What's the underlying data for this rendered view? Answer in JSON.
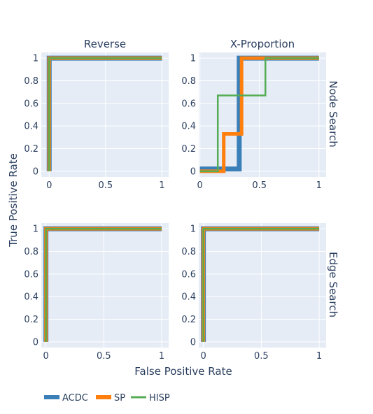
{
  "figure": {
    "xlabel": "False Positive Rate",
    "ylabel": "True Positive Rate",
    "row_labels": [
      "Node Search",
      "Edge Search"
    ],
    "col_labels": [
      "Reverse",
      "X-Proportion"
    ]
  },
  "legend": [
    {
      "name": "ACDC",
      "color": "#3b7fb8"
    },
    {
      "name": "SP",
      "color": "#ff7f0e"
    },
    {
      "name": "HISP",
      "color": "#54ad54"
    }
  ],
  "chart_data": [
    {
      "type": "line",
      "title": "Reverse",
      "row": "Node Search",
      "xlim": [
        -0.07,
        1.06
      ],
      "ylim": [
        -0.05,
        1.05
      ],
      "xticks": [
        "0",
        "0.5",
        "1"
      ],
      "yticks": [
        "0",
        "0.2",
        "0.4",
        "0.6",
        "0.8",
        "1"
      ],
      "grid": true,
      "series": [
        {
          "name": "ACDC",
          "color": "#3b7fb8",
          "width": 7,
          "x": [
            0,
            0,
            1
          ],
          "y": [
            0,
            1,
            1
          ]
        },
        {
          "name": "SP",
          "color": "#ff7f0e",
          "width": 5,
          "x": [
            0,
            0,
            1
          ],
          "y": [
            0,
            1,
            1
          ]
        },
        {
          "name": "HISP",
          "color": "#54ad54",
          "width": 2.5,
          "x": [
            0,
            0,
            1
          ],
          "y": [
            0,
            1,
            1
          ]
        }
      ]
    },
    {
      "type": "line",
      "title": "X-Proportion",
      "row": "Node Search",
      "xlim": [
        -0.01,
        1.06
      ],
      "ylim": [
        -0.05,
        1.05
      ],
      "xticks": [
        "0",
        "0.5",
        "1"
      ],
      "yticks": [
        "0",
        "0.2",
        "0.4",
        "0.6",
        "0.8",
        "1"
      ],
      "grid": true,
      "series": [
        {
          "name": "ACDC",
          "color": "#3b7fb8",
          "width": 7,
          "x": [
            0,
            0.25,
            0.25,
            0.33,
            0.33,
            1
          ],
          "y": [
            0.02,
            0.02,
            0.02,
            0.02,
            1,
            1
          ]
        },
        {
          "name": "SP",
          "color": "#ff7f0e",
          "width": 5,
          "x": [
            0,
            0.2,
            0.2,
            0.35,
            0.35,
            1
          ],
          "y": [
            0,
            0,
            0.33,
            0.33,
            1,
            1
          ]
        },
        {
          "name": "HISP",
          "color": "#54ad54",
          "width": 2.5,
          "x": [
            0,
            0.15,
            0.15,
            0.55,
            0.55,
            1
          ],
          "y": [
            0,
            0,
            0.67,
            0.67,
            1,
            1
          ]
        }
      ]
    },
    {
      "type": "line",
      "title": "",
      "row": "Edge Search",
      "xlim": [
        -0.04,
        1.06
      ],
      "ylim": [
        -0.05,
        1.05
      ],
      "xticks": [
        "0",
        "0.5",
        "1"
      ],
      "yticks": [
        "0",
        "0.2",
        "0.4",
        "0.6",
        "0.8",
        "1"
      ],
      "grid": true,
      "series": [
        {
          "name": "ACDC",
          "color": "#3b7fb8",
          "width": 7,
          "x": [
            0,
            0,
            1
          ],
          "y": [
            0,
            1,
            1
          ]
        },
        {
          "name": "SP",
          "color": "#ff7f0e",
          "width": 5,
          "x": [
            0,
            0,
            1
          ],
          "y": [
            0,
            1,
            1
          ]
        },
        {
          "name": "HISP",
          "color": "#54ad54",
          "width": 2.5,
          "x": [
            0,
            0,
            1
          ],
          "y": [
            0,
            1,
            1
          ]
        }
      ]
    },
    {
      "type": "line",
      "title": "",
      "row": "Edge Search",
      "xlim": [
        -0.04,
        1.06
      ],
      "ylim": [
        -0.05,
        1.05
      ],
      "xticks": [
        "0",
        "0.5",
        "1"
      ],
      "yticks": [
        "0",
        "0.2",
        "0.4",
        "0.6",
        "0.8",
        "1"
      ],
      "grid": true,
      "series": [
        {
          "name": "ACDC",
          "color": "#3b7fb8",
          "width": 7,
          "x": [
            0,
            0,
            1
          ],
          "y": [
            0,
            1,
            1
          ]
        },
        {
          "name": "SP",
          "color": "#ff7f0e",
          "width": 5,
          "x": [
            0,
            0,
            1
          ],
          "y": [
            0,
            1,
            1
          ]
        },
        {
          "name": "HISP",
          "color": "#54ad54",
          "width": 2.5,
          "x": [
            0,
            0,
            1
          ],
          "y": [
            0,
            1,
            1
          ]
        }
      ]
    }
  ]
}
